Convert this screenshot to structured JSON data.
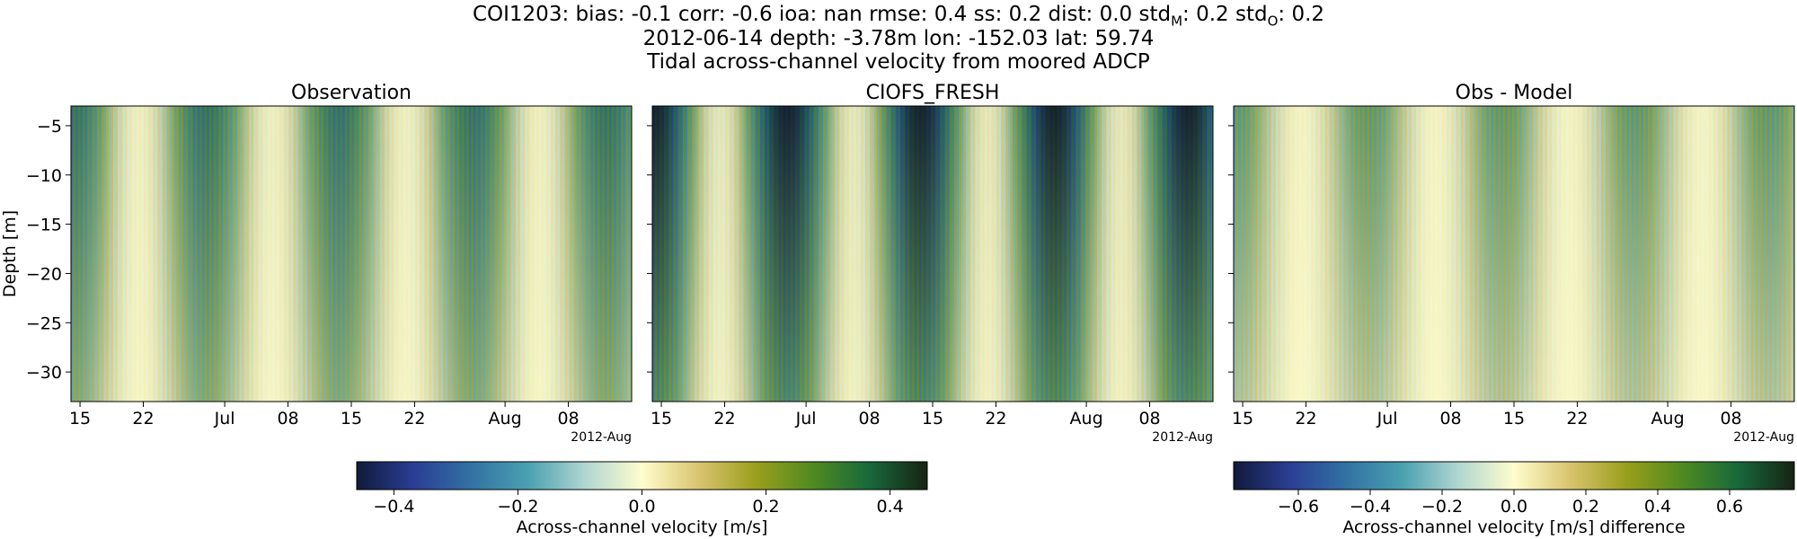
{
  "title": {
    "line1_prefix": "COI1203: bias: -0.1  corr: -0.6  ioa: nan  rmse: 0.4  ss: 0.2  dist: 0.0  std",
    "line1_sub_m": "M",
    "line1_mid": ": 0.2  std",
    "line1_sub_o": "O",
    "line1_suffix": ": 0.2",
    "line2": "2012-06-14 depth: -3.78m lon: -152.03 lat: 59.74",
    "line3": "Tidal across-channel velocity from moored ADCP"
  },
  "chart_data": [
    {
      "type": "heatmap",
      "title": "Observation",
      "xlabel": "",
      "ylabel": "Depth [m]",
      "x_range": [
        "2012-06-14",
        "2012-08-15"
      ],
      "ylim": [
        -33,
        -3
      ],
      "x_ticks": [
        "15",
        "22",
        "Jul",
        "08",
        "15",
        "22",
        "Aug",
        "08"
      ],
      "x_tick_dates": [
        "2012-06-15",
        "2012-06-22",
        "2012-07-01",
        "2012-07-08",
        "2012-07-15",
        "2012-07-22",
        "2012-08-01",
        "2012-08-08"
      ],
      "x_offset_label": "2012-Aug",
      "y_ticks": [
        -5,
        -10,
        -15,
        -20,
        -25,
        -30
      ],
      "y_tick_labels": [
        "−5",
        "−10",
        "−15",
        "−20",
        "−25",
        "−30"
      ],
      "colormap": "delta",
      "color_range": [
        -0.46,
        0.46
      ],
      "colorbar_label": "Across-channel velocity [m/s]",
      "tidal_period_hours": 12.42,
      "amplitude": 0.3
    },
    {
      "type": "heatmap",
      "title": "CIOFS_FRESH",
      "xlabel": "",
      "ylabel": "",
      "x_range": [
        "2012-06-14",
        "2012-08-15"
      ],
      "ylim": [
        -33,
        -3
      ],
      "x_ticks": [
        "15",
        "22",
        "Jul",
        "08",
        "15",
        "22",
        "Aug",
        "08"
      ],
      "x_tick_dates": [
        "2012-06-15",
        "2012-06-22",
        "2012-07-01",
        "2012-07-08",
        "2012-07-15",
        "2012-07-22",
        "2012-08-01",
        "2012-08-08"
      ],
      "x_offset_label": "2012-Aug",
      "colormap": "delta",
      "color_range": [
        -0.46,
        0.46
      ],
      "tidal_period_hours": 12.42,
      "amplitude": 0.45
    },
    {
      "type": "heatmap",
      "title": "Obs - Model",
      "xlabel": "",
      "ylabel": "",
      "x_range": [
        "2012-06-14",
        "2012-08-15"
      ],
      "ylim": [
        -33,
        -3
      ],
      "x_ticks": [
        "15",
        "22",
        "Jul",
        "08",
        "15",
        "22",
        "Aug",
        "08"
      ],
      "x_tick_dates": [
        "2012-06-15",
        "2012-06-22",
        "2012-07-01",
        "2012-07-08",
        "2012-07-15",
        "2012-07-22",
        "2012-08-01",
        "2012-08-08"
      ],
      "x_offset_label": "2012-Aug",
      "colormap": "delta",
      "color_range": [
        -0.78,
        0.78
      ],
      "colorbar_label": "Across-channel velocity [m/s] difference",
      "tidal_period_hours": 12.42,
      "amplitude": 0.35
    }
  ],
  "colorbars": [
    {
      "range": [
        -0.46,
        0.46
      ],
      "ticks": [
        -0.4,
        -0.2,
        0.0,
        0.2,
        0.4
      ],
      "tick_labels": [
        "−0.4",
        "−0.2",
        "0.0",
        "0.2",
        "0.4"
      ],
      "label": "Across-channel velocity [m/s]"
    },
    {
      "range": [
        -0.78,
        0.78
      ],
      "ticks": [
        -0.6,
        -0.4,
        -0.2,
        0.0,
        0.2,
        0.4,
        0.6
      ],
      "tick_labels": [
        "−0.6",
        "−0.4",
        "−0.2",
        "0.0",
        "0.2",
        "0.4",
        "0.6"
      ],
      "label": "Across-channel velocity [m/s] difference"
    }
  ],
  "colors": {
    "delta_stops": [
      "#111a3c",
      "#2a3e95",
      "#3271a3",
      "#4aa0b1",
      "#b0d6d1",
      "#fffdcd",
      "#d9c46e",
      "#9a9f1d",
      "#4f8a20",
      "#17683b",
      "#172313"
    ]
  }
}
